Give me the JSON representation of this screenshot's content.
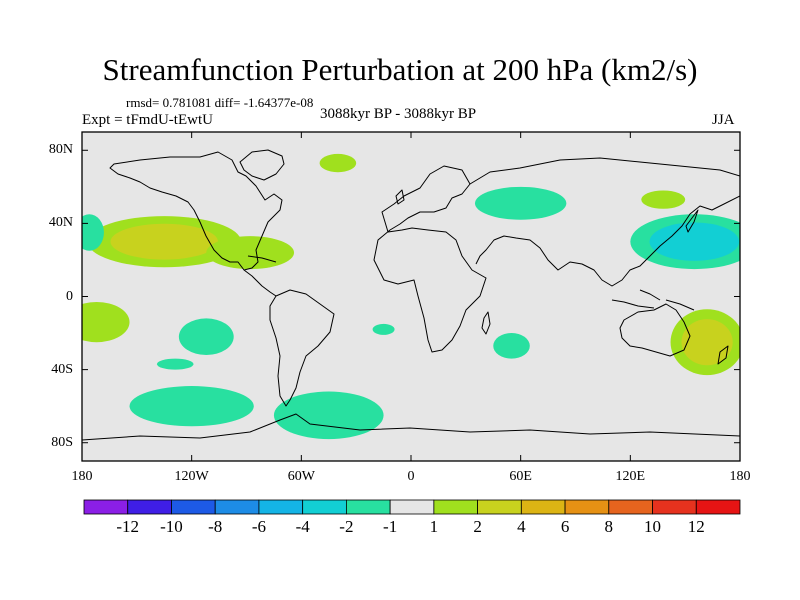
{
  "figure": {
    "title": "Streamfunction Perturbation at 200 hPa (km2/s)",
    "stats": "rmsd= 0.781081 diff= -1.64377e-08",
    "experiment": "Expt = tFmdU-tEwtU",
    "period": "3088kyr BP - 3088kyr BP",
    "season": "JJA"
  },
  "map": {
    "lat_labels": [
      "80N",
      "40N",
      "0",
      "40S",
      "80S"
    ],
    "lon_labels": [
      "180",
      "120W",
      "60W",
      "0",
      "60E",
      "120E",
      "180"
    ],
    "background_color": "#e6e6e6"
  },
  "colorbar": {
    "labels": [
      "-12",
      "-10",
      "-8",
      "-6",
      "-4",
      "-2",
      "-1",
      "1",
      "2",
      "4",
      "6",
      "8",
      "10",
      "12"
    ],
    "colors": [
      "#8b1fe6",
      "#3f1ee6",
      "#1d5ae6",
      "#1d8ce6",
      "#14b4e6",
      "#12cfd4",
      "#28e0a0",
      "#e6e6e6",
      "#a0e01e",
      "#c8d21e",
      "#dcb414",
      "#e69114",
      "#e6641e",
      "#e6321e",
      "#e61414"
    ]
  },
  "chart_data": {
    "type": "heatmap",
    "title": "Streamfunction Perturbation at 200 hPa (km2/s)",
    "units": "km2/s",
    "projection": "cylindrical equidistant",
    "lon_range": [
      -180,
      180
    ],
    "lat_range": [
      -90,
      90
    ],
    "levels": [
      -12,
      -10,
      -8,
      -6,
      -4,
      -2,
      -1,
      1,
      2,
      4,
      6,
      8,
      10,
      12
    ],
    "anomalies": [
      {
        "name": "Central Pacific NH positive",
        "lon": -135,
        "lat": 30,
        "dlon": 42,
        "dlat": 14,
        "value": 3
      },
      {
        "name": "North Atlantic positive",
        "lon": -88,
        "lat": 24,
        "dlon": 24,
        "dlat": 9,
        "value": 2
      },
      {
        "name": "Greenland positive",
        "lon": -40,
        "lat": 73,
        "dlon": 10,
        "dlat": 5,
        "value": 2
      },
      {
        "name": "Pacific dateline edge negative",
        "lon": -176,
        "lat": 35,
        "dlon": 8,
        "dlat": 10,
        "value": -1.5
      },
      {
        "name": "West Pacific subtropical negative",
        "lon": 155,
        "lat": 30,
        "dlon": 35,
        "dlat": 15,
        "value": -3.5
      },
      {
        "name": "Central Asia negative",
        "lon": 60,
        "lat": 51,
        "dlon": 25,
        "dlat": 9,
        "value": -1.5
      },
      {
        "name": "East Asia positive",
        "lon": 138,
        "lat": 53,
        "dlon": 12,
        "dlat": 5,
        "value": 1.5
      },
      {
        "name": "SW Pacific positive",
        "lon": 162,
        "lat": -25,
        "dlon": 20,
        "dlat": 18,
        "value": 2.5
      },
      {
        "name": "SE Pacific tropical positive",
        "lon": -172,
        "lat": -14,
        "dlon": 18,
        "dlat": 11,
        "value": 2
      },
      {
        "name": "South Pacific negative",
        "lon": -112,
        "lat": -22,
        "dlon": 15,
        "dlat": 10,
        "value": -1.5
      },
      {
        "name": "South Pacific 40S negative",
        "lon": -129,
        "lat": -37,
        "dlon": 10,
        "dlat": 3,
        "value": -1.5
      },
      {
        "name": "Southern Ocean Pacific negative",
        "lon": -120,
        "lat": -60,
        "dlon": 34,
        "dlat": 11,
        "value": -1.5
      },
      {
        "name": "Drake Passage negative",
        "lon": -45,
        "lat": -65,
        "dlon": 30,
        "dlat": 13,
        "value": -1.5
      },
      {
        "name": "South Atlantic small negative",
        "lon": -15,
        "lat": -18,
        "dlon": 6,
        "dlat": 3,
        "value": -1.5
      },
      {
        "name": "Indian Ocean negative",
        "lon": 55,
        "lat": -27,
        "dlon": 10,
        "dlat": 7,
        "value": -1.5
      }
    ]
  }
}
